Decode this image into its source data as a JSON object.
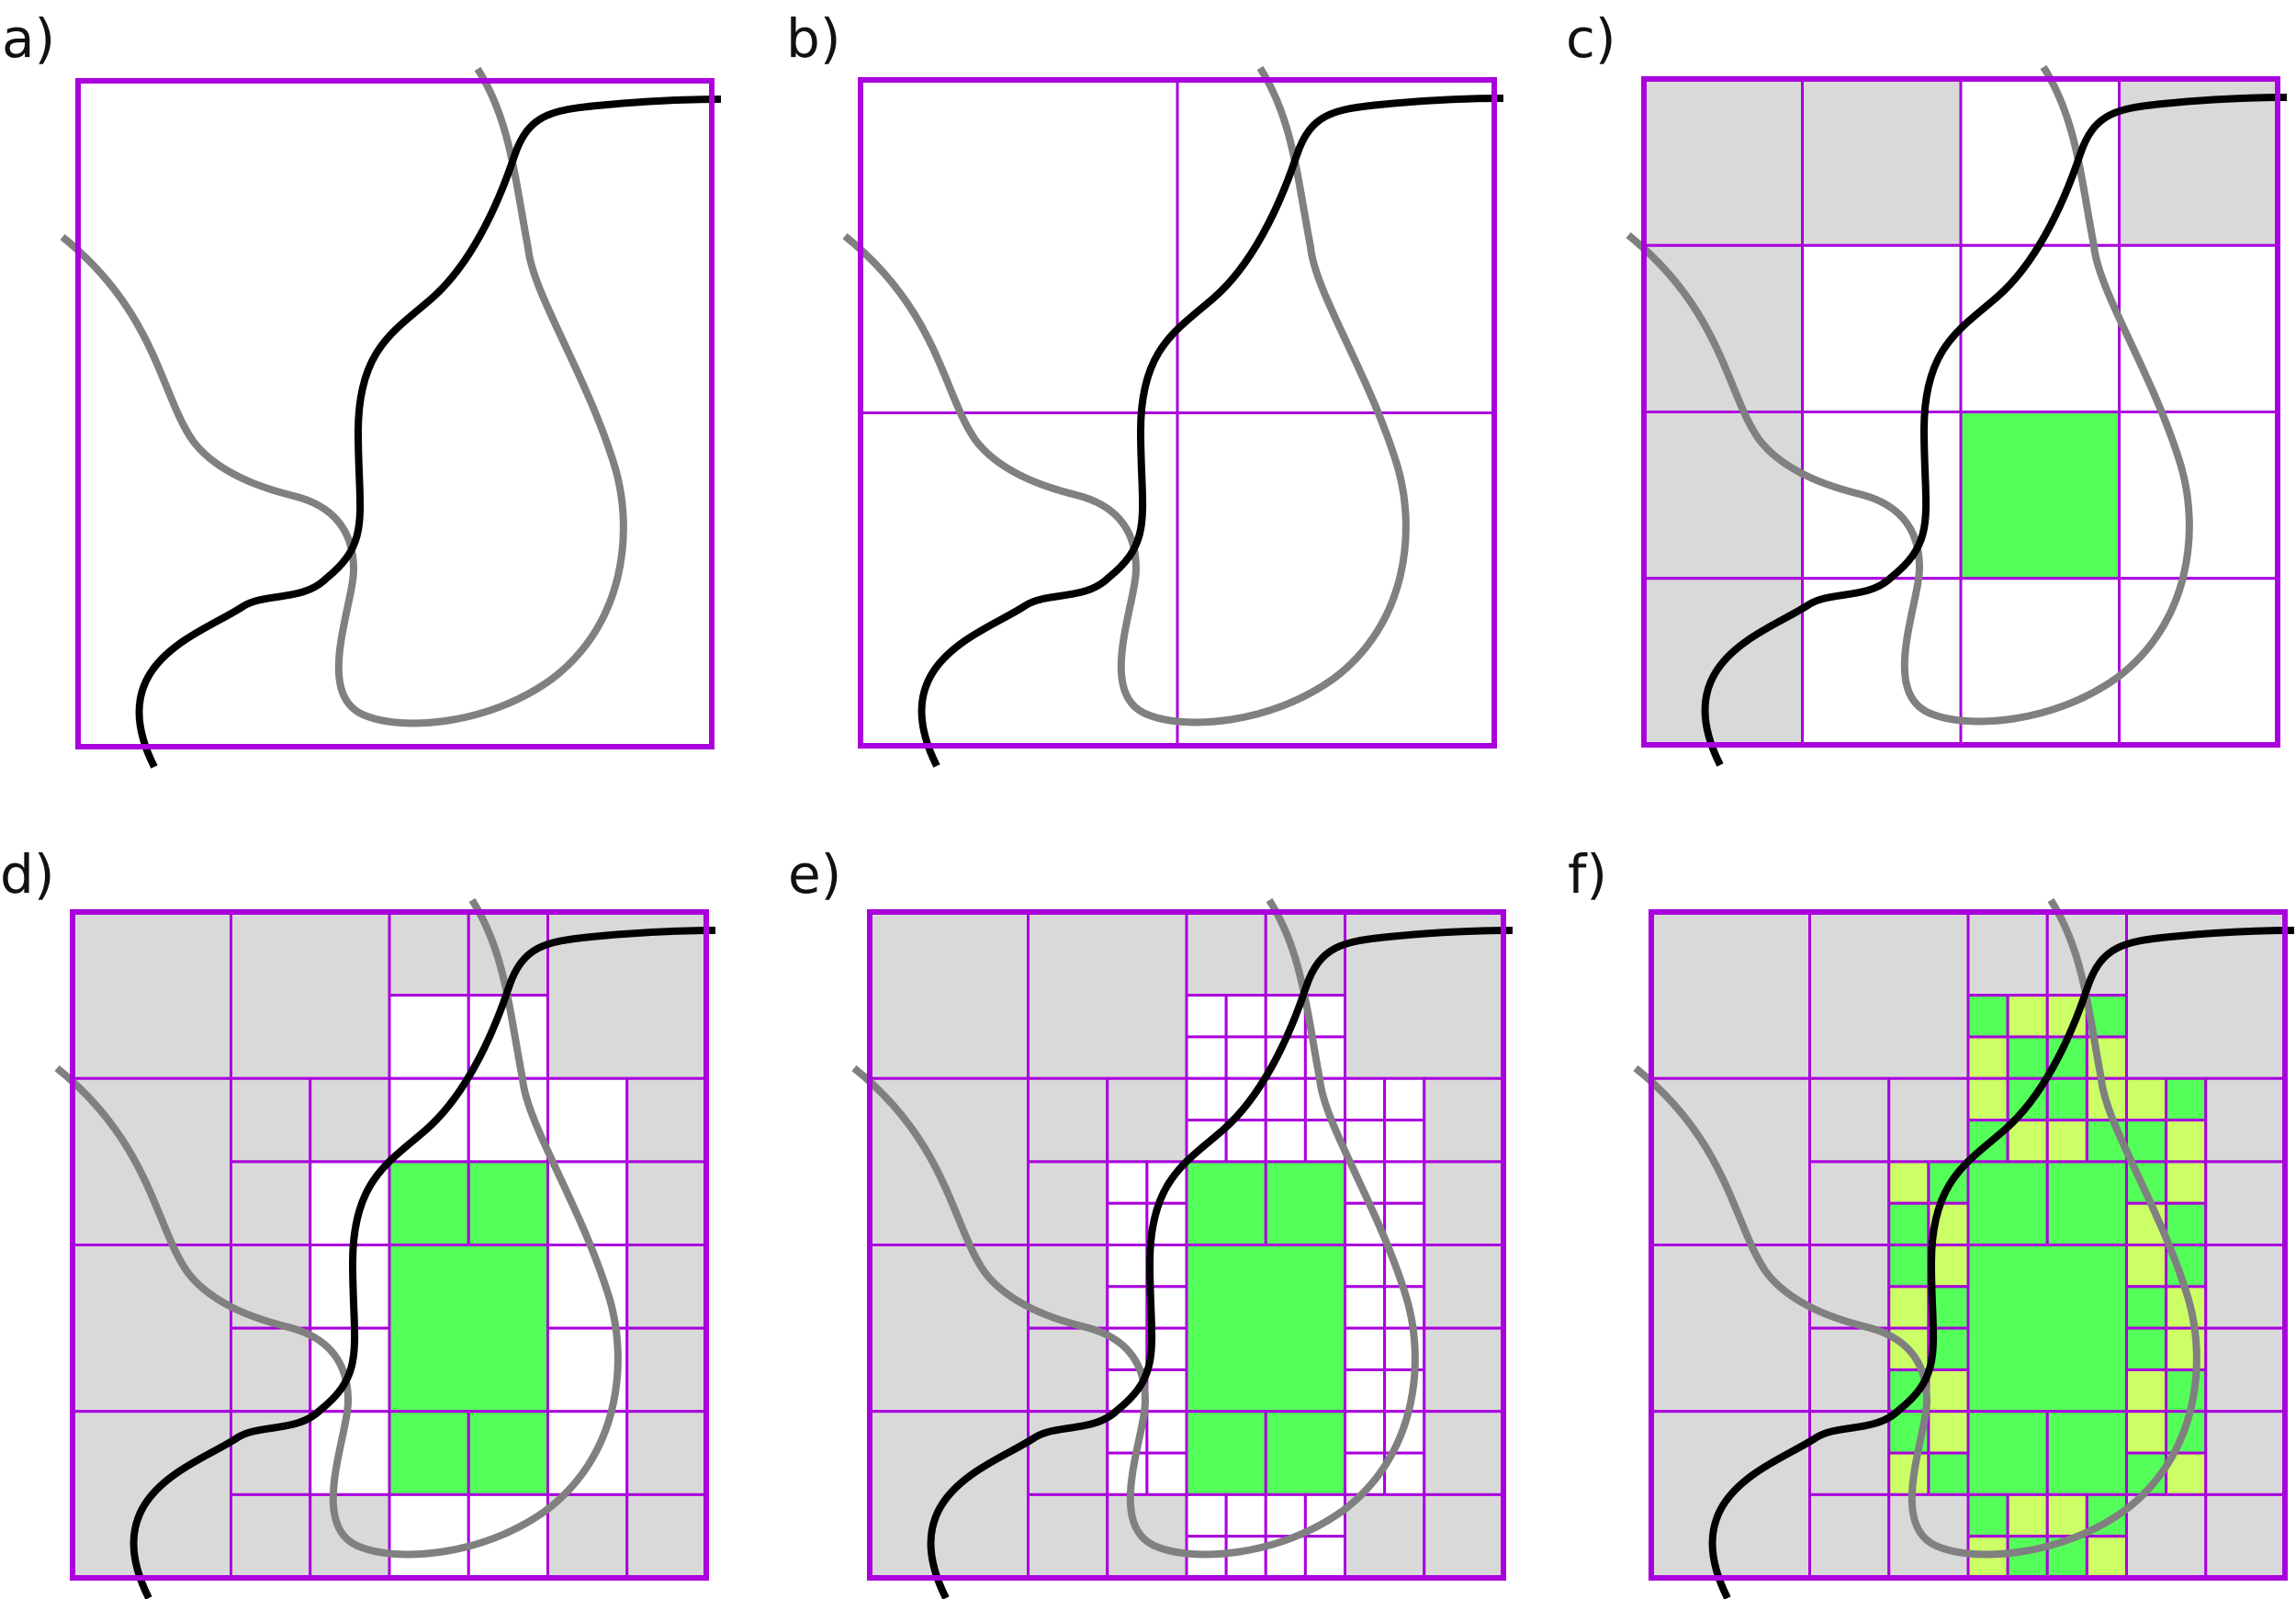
{
  "panels": [
    {
      "label": "a)"
    },
    {
      "label": "b)"
    },
    {
      "label": "c)"
    },
    {
      "label": "d)"
    },
    {
      "label": "e)"
    },
    {
      "label": "f)"
    }
  ],
  "colors": {
    "frame": "#aa00dd",
    "grid": "#aa00dd",
    "outside_fill": "#d9d9d9",
    "inside_fill": "#55ff5a",
    "boundary_fill": "#ccff66",
    "curve_dark": "#000000",
    "curve_gray": "#808080",
    "background": "#ffffff"
  }
}
